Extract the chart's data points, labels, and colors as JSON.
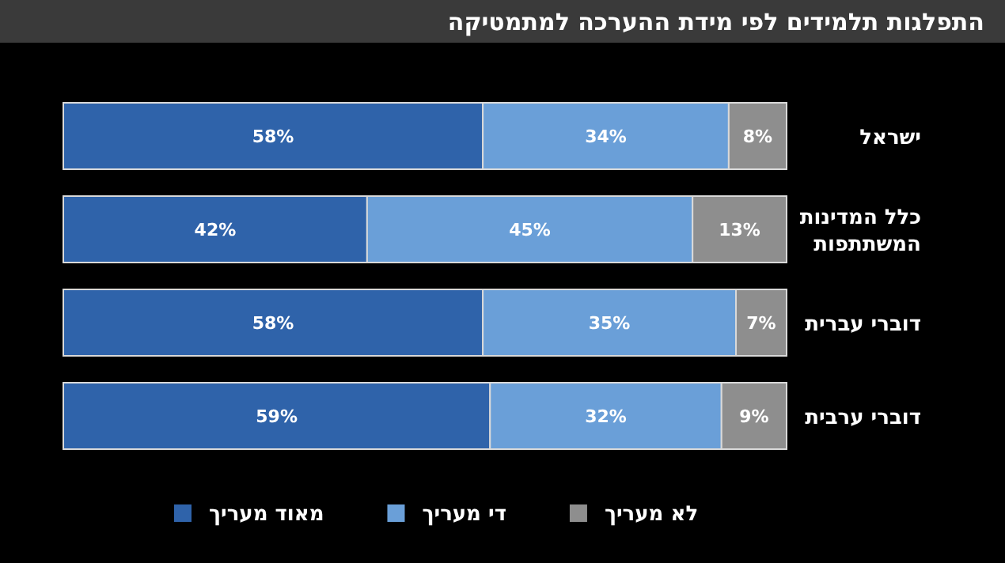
{
  "chart_data": {
    "type": "bar",
    "orientation": "horizontal",
    "stacked": true,
    "title": "התפלגות תלמידים לפי מידת ההערכה למתמטיקה",
    "categories": [
      "ישראל",
      "כלל המדינות המשתתפות",
      "דוברי עברית",
      "דוברי ערבית"
    ],
    "series": [
      {
        "name": "מאוד מעריך",
        "color": "#2f63aa",
        "values": [
          58,
          42,
          58,
          59
        ],
        "value_labels": [
          "58%",
          "42%",
          "58%",
          "59%"
        ]
      },
      {
        "name": "די מעריך",
        "color": "#6a9fd8",
        "values": [
          34,
          45,
          35,
          32
        ],
        "value_labels": [
          "34%",
          "45%",
          "35%",
          "32%"
        ]
      },
      {
        "name": "לא מעריך",
        "color": "#8e8e8e",
        "values": [
          8,
          13,
          7,
          9
        ],
        "value_labels": [
          "8%",
          "13%",
          "7%",
          "9%"
        ]
      }
    ],
    "legend": "bottom"
  }
}
